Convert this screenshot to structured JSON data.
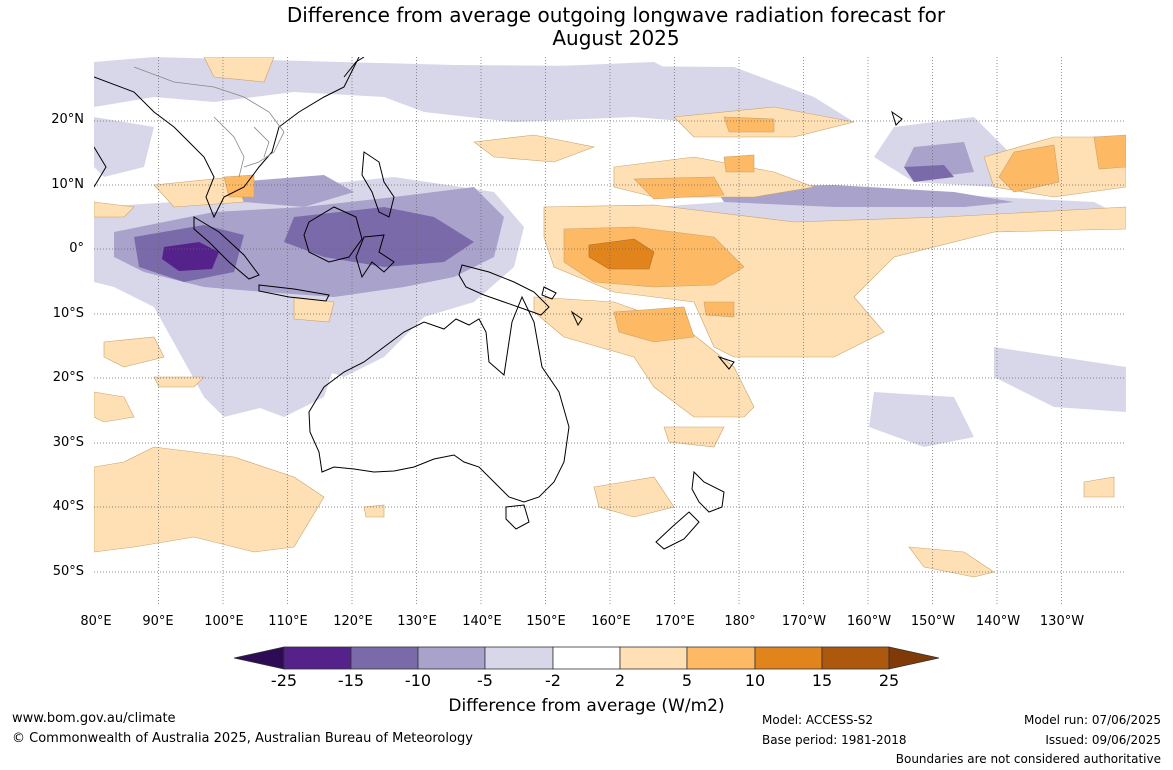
{
  "title_line1": "Difference from average outgoing longwave radiation forecast for",
  "title_line2": "August 2025",
  "lat_labels": [
    "20°N",
    "10°N",
    "0°",
    "10°S",
    "20°S",
    "30°S",
    "40°S",
    "50°S"
  ],
  "lon_labels": [
    "80°E",
    "90°E",
    "100°E",
    "110°E",
    "120°E",
    "130°E",
    "140°E",
    "150°E",
    "160°E",
    "170°E",
    "180°",
    "170°W",
    "160°W",
    "150°W",
    "140°W",
    "130°W"
  ],
  "colorbar": {
    "title": "Difference from average (W/m2)",
    "ticks": [
      "-25",
      "-15",
      "-10",
      "-5",
      "-2",
      "2",
      "5",
      "10",
      "15",
      "25"
    ],
    "colors": [
      "#2e0b55",
      "#54228a",
      "#7b6aaa",
      "#a9a2cb",
      "#d8d7ea",
      "#ffffff",
      "#ffe0b4",
      "#fdb964",
      "#e2841c",
      "#ad580c",
      "#7f3a07"
    ]
  },
  "footer": {
    "website": "www.bom.gov.au/climate",
    "copyright": "© Commonwealth of Australia 2025, Australian Bureau of Meteorology",
    "model": "Model: ACCESS-S2",
    "base_period": "Base period: 1981-2018",
    "model_run": "Model run: 07/06/2025",
    "issued": "Issued: 09/06/2025",
    "disclaimer": "Boundaries are not considered authoritative"
  }
}
